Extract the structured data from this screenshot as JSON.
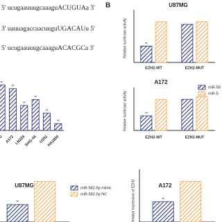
{
  "panel_label": "B",
  "sequences": [
    "5' ucugaauuugcaaaguACUGUAa 3'",
    "3' uauuagaccaacuuguUGACAUu 5'",
    "5' ucugaauuugcaaaguACACGCa 3'"
  ],
  "chart_data": [
    {
      "type": "bar",
      "title": "U87MG",
      "y_label": "Relative luciferase activity",
      "categories": [
        "EZH2-WT",
        "EZH2-MUT"
      ],
      "series": [
        {
          "color": "#1f2f7a",
          "values": [
            0.42,
            0.98
          ],
          "annotations": [
            "**",
            null
          ]
        },
        {
          "color": "#f5a54a",
          "values": [
            1.05,
            1.05
          ],
          "annotations": [
            null,
            null
          ]
        }
      ],
      "ylim": [
        0,
        1.25
      ]
    },
    {
      "type": "bar",
      "categories": [
        "MG",
        "A172",
        "LN229",
        "SHG-44",
        "U251",
        "HA1800"
      ],
      "series": [
        {
          "color": "#1f2f7a",
          "values": [
            1.0,
            0.92,
            0.55,
            0.68,
            0.38,
            0.15
          ],
          "annotations": [
            "**",
            "**",
            "**",
            "**",
            "**",
            "**"
          ]
        }
      ],
      "ylim": [
        0,
        1.1
      ]
    },
    {
      "type": "bar",
      "title": "A172",
      "y_label": "Relative luciferase activity",
      "categories": [
        "EZH2-WT",
        "EZH2-MUT"
      ],
      "series": [
        {
          "name": "miR-58",
          "color": "#1f2f7a",
          "values": [
            0.47,
            1.0
          ],
          "annotations": [
            "**",
            null
          ]
        },
        {
          "name": "miR-5",
          "color": "#f5a54a",
          "values": [
            1.0,
            1.08
          ],
          "annotations": [
            null,
            null
          ]
        }
      ],
      "ylim": [
        0,
        1.25
      ]
    },
    {
      "type": "bar",
      "title": "U87MG",
      "categories": [
        null
      ],
      "series": [
        {
          "name": "miR-582-5p mimic",
          "color": "#1f2f7a",
          "values": [
            0.43
          ],
          "annotations": [
            "**"
          ]
        },
        {
          "name": "miR-582-5p NC",
          "color": "#f5a54a",
          "values": [
            1.0
          ],
          "annotations": [
            null
          ]
        }
      ],
      "ylim": [
        0,
        1.2
      ]
    },
    {
      "type": "bar",
      "title": "A172",
      "y_label": "Relative expression of EZH2",
      "categories": [
        null
      ],
      "series": [
        {
          "color": "#1f2f7a",
          "values": [
            0.5
          ],
          "annotations": [
            "**"
          ]
        },
        {
          "color": "#f5a54a",
          "values": [
            1.0
          ],
          "annotations": [
            null
          ]
        }
      ],
      "ylim": [
        0,
        1.2
      ]
    }
  ]
}
